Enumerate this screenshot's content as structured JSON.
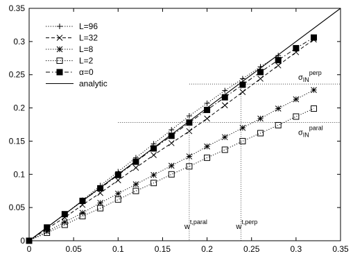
{
  "chart_data": {
    "type": "line",
    "title": "",
    "xlabel": "",
    "ylabel": "",
    "xlim": [
      0,
      0.35
    ],
    "ylim": [
      0,
      0.35
    ],
    "x_ticks": [
      "0",
      "0.05",
      "0.1",
      "0.15",
      "0.2",
      "0.25",
      "0.3",
      "0.35"
    ],
    "y_ticks": [
      "0",
      "0.05",
      "0.1",
      "0.15",
      "0.2",
      "0.25",
      "0.3",
      "0.35"
    ],
    "grid": false,
    "legend_position": "top-left",
    "series": [
      {
        "name": "L=96",
        "marker": "plus",
        "line": "dotted",
        "x": [
          0,
          0.02,
          0.04,
          0.06,
          0.08,
          0.1,
          0.12,
          0.14,
          0.16,
          0.18,
          0.2,
          0.22,
          0.24,
          0.26,
          0.28
        ],
        "y": [
          0,
          0.02,
          0.04,
          0.061,
          0.083,
          0.104,
          0.125,
          0.146,
          0.167,
          0.188,
          0.207,
          0.226,
          0.244,
          0.262,
          0.279
        ]
      },
      {
        "name": "L=32",
        "marker": "x",
        "line": "dashed",
        "x": [
          0,
          0.02,
          0.04,
          0.06,
          0.08,
          0.1,
          0.12,
          0.14,
          0.16,
          0.18,
          0.2,
          0.22,
          0.24,
          0.26,
          0.28,
          0.3,
          0.32
        ],
        "y": [
          0,
          0.018,
          0.035,
          0.054,
          0.072,
          0.091,
          0.11,
          0.129,
          0.147,
          0.165,
          0.184,
          0.204,
          0.224,
          0.244,
          0.264,
          0.284,
          0.303
        ]
      },
      {
        "name": "L=8",
        "marker": "asterisk",
        "line": "dotted",
        "x": [
          0,
          0.02,
          0.04,
          0.06,
          0.08,
          0.1,
          0.12,
          0.14,
          0.16,
          0.18,
          0.2,
          0.22,
          0.24,
          0.26,
          0.28,
          0.3,
          0.32
        ],
        "y": [
          0,
          0.014,
          0.028,
          0.042,
          0.057,
          0.071,
          0.085,
          0.099,
          0.113,
          0.127,
          0.142,
          0.156,
          0.17,
          0.184,
          0.199,
          0.213,
          0.227
        ]
      },
      {
        "name": "L=2",
        "marker": "open-square",
        "line": "dotted",
        "x": [
          0,
          0.02,
          0.04,
          0.06,
          0.08,
          0.1,
          0.12,
          0.14,
          0.16,
          0.18,
          0.2,
          0.22,
          0.24,
          0.26,
          0.28,
          0.3,
          0.32
        ],
        "y": [
          0,
          0.012,
          0.024,
          0.037,
          0.049,
          0.062,
          0.075,
          0.087,
          0.1,
          0.112,
          0.125,
          0.137,
          0.15,
          0.162,
          0.174,
          0.187,
          0.199
        ]
      },
      {
        "name": "α=0",
        "marker": "filled-square",
        "line": "dash-dot",
        "x": [
          0,
          0.02,
          0.04,
          0.06,
          0.08,
          0.1,
          0.12,
          0.14,
          0.16,
          0.18,
          0.2,
          0.22,
          0.24,
          0.26,
          0.28,
          0.3,
          0.32
        ],
        "y": [
          0,
          0.02,
          0.04,
          0.06,
          0.079,
          0.099,
          0.119,
          0.139,
          0.158,
          0.178,
          0.197,
          0.216,
          0.235,
          0.254,
          0.272,
          0.29,
          0.306
        ]
      },
      {
        "name": "analytic",
        "marker": "none",
        "line": "solid",
        "x": [
          0,
          0.35
        ],
        "y": [
          0,
          0.35
        ]
      }
    ],
    "annotations": {
      "sigma_perp": {
        "base": "σ",
        "sub": "IN",
        "sup": "perp",
        "y": 0.236
      },
      "sigma_paral": {
        "base": "σ",
        "sub": "IN",
        "sup": "paral",
        "y": 0.178
      },
      "w_paral": {
        "base": "w",
        "sup": "t,paral",
        "x": 0.18
      },
      "w_perp": {
        "base": "w",
        "sup": "t,perp",
        "x": 0.238
      }
    }
  }
}
